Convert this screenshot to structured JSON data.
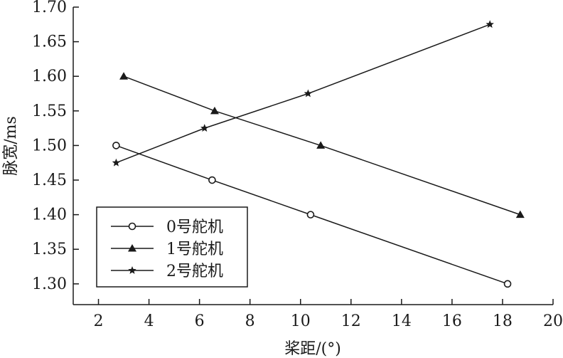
{
  "chart_data": {
    "type": "line",
    "xlabel": "桨距/(°)",
    "ylabel": "脉宽/ms",
    "xlim": [
      1,
      20
    ],
    "ylim": [
      1.27,
      1.7
    ],
    "xticks": [
      2,
      4,
      6,
      8,
      10,
      12,
      14,
      16,
      18,
      20
    ],
    "xtick_labels": [
      "2",
      "4",
      "6",
      "8",
      "10",
      "12",
      "14",
      "16",
      "18",
      "20"
    ],
    "yticks": [
      1.3,
      1.35,
      1.4,
      1.45,
      1.5,
      1.55,
      1.6,
      1.65,
      1.7
    ],
    "ytick_labels": [
      "1.30",
      "1.35",
      "1.40",
      "1.45",
      "1.50",
      "1.55",
      "1.60",
      "1.65",
      "1.70"
    ],
    "grid": false,
    "legend": {
      "placement": "bottom-left",
      "frame": true
    },
    "color": "#1a1a1a",
    "series": [
      {
        "name": "0号舵机",
        "marker": "circle-open",
        "x": [
          2.7,
          6.5,
          10.4,
          18.2
        ],
        "y": [
          1.5,
          1.45,
          1.4,
          1.3
        ]
      },
      {
        "name": "1号舵机",
        "marker": "triangle-filled",
        "x": [
          3.0,
          6.6,
          10.8,
          18.7
        ],
        "y": [
          1.6,
          1.55,
          1.5,
          1.4
        ]
      },
      {
        "name": "2号舵机",
        "marker": "star-filled",
        "x": [
          2.7,
          6.2,
          10.3,
          17.5
        ],
        "y": [
          1.475,
          1.525,
          1.575,
          1.675
        ]
      }
    ]
  }
}
